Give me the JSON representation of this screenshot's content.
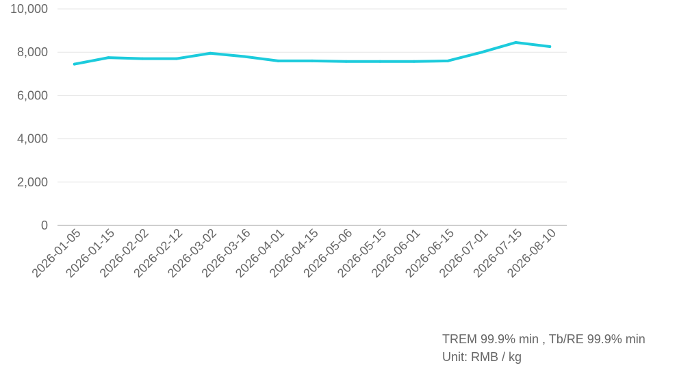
{
  "chart_data": {
    "type": "line",
    "title": "",
    "xlabel": "",
    "ylabel": "",
    "categories": [
      "2026-01-05",
      "2026-01-15",
      "2026-02-02",
      "2026-02-12",
      "2026-03-02",
      "2026-03-16",
      "2026-04-01",
      "2026-04-15",
      "2026-05-06",
      "2026-05-15",
      "2026-06-01",
      "2026-06-15",
      "2026-07-01",
      "2026-07-15",
      "2026-08-10"
    ],
    "series": [
      {
        "values": [
          7450,
          7750,
          7700,
          7700,
          7950,
          7800,
          7600,
          7600,
          7570,
          7570,
          7570,
          7600,
          8000,
          8450,
          8260
        ]
      }
    ],
    "ylim": [
      0,
      10000
    ],
    "yticks": [
      0,
      2000,
      4000,
      6000,
      8000,
      10000
    ],
    "ytick_labels": [
      "0",
      "2,000",
      "4,000",
      "6,000",
      "8,000",
      "10,000"
    ],
    "grid": true,
    "legend": "none",
    "colors": {
      "line": "#1ccbdc",
      "grid": "#e6e6e6",
      "axis": "#bfbfbf",
      "text": "#666666"
    }
  },
  "notes": {
    "line1": "TREM 99.9% min , Tb/RE 99.9% min",
    "line2": "Unit: RMB / kg"
  }
}
